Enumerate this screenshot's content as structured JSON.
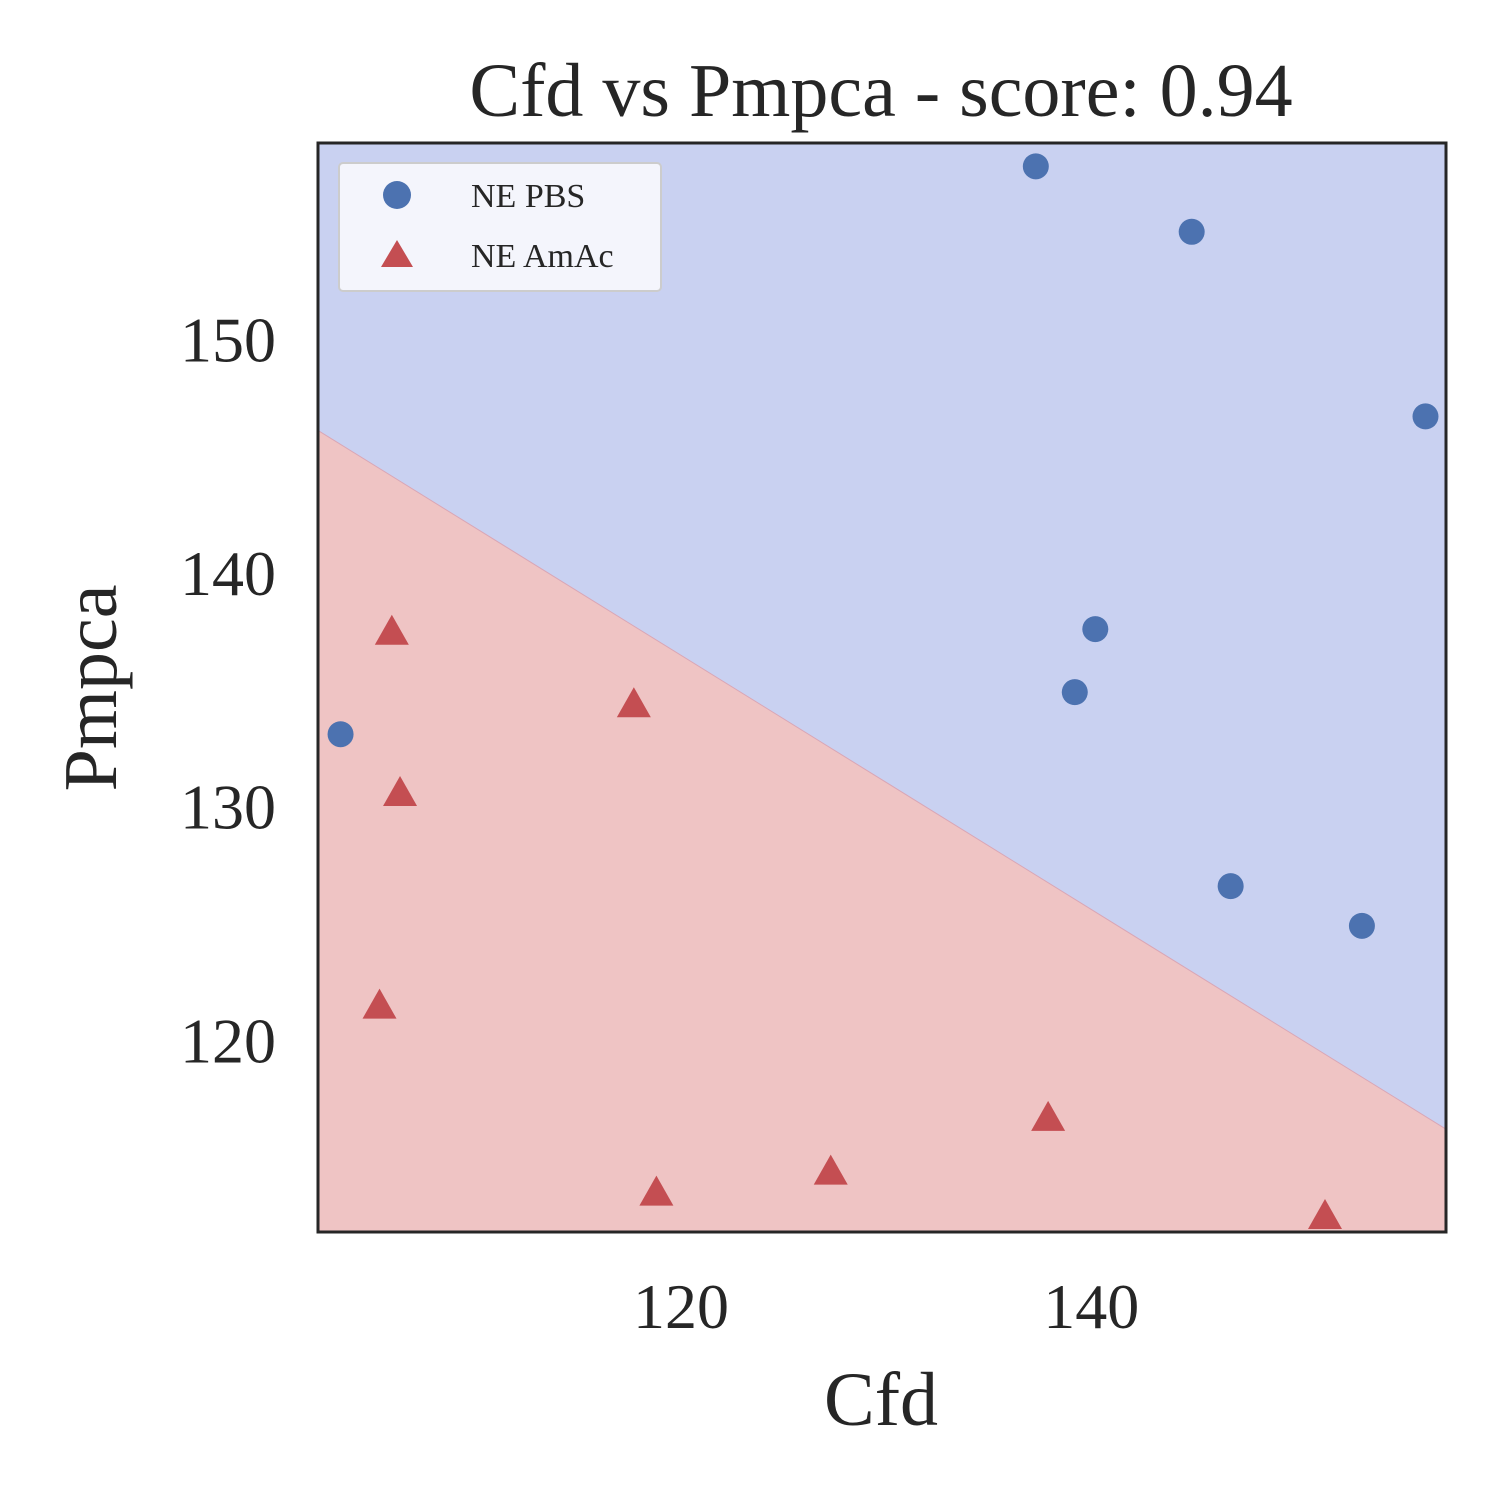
{
  "chart_data": {
    "type": "scatter",
    "title": "Cfd vs Pmpca - score: 0.94",
    "xlabel": "Cfd",
    "ylabel": "Pmpca",
    "xlim": [
      102.3,
      157.3
    ],
    "ylim": [
      111.8,
      158.4
    ],
    "xticks": [
      120,
      140
    ],
    "yticks": [
      120,
      130,
      140,
      150
    ],
    "grid": false,
    "legend_position": "top-left",
    "decision_boundary": {
      "points": [
        [
          102.3,
          146.1
        ],
        [
          157.3,
          116.2
        ]
      ],
      "upper_region": "NE PBS",
      "lower_region": "NE AmAc"
    },
    "colors": {
      "NE PBS": "#4c72b0",
      "NE AmAc": "#c44e52",
      "upper_region_fill": "#c9d1f1",
      "lower_region_fill": "#efc4c4",
      "axes_edge": "#262626"
    },
    "series": [
      {
        "name": "NE PBS",
        "marker": "circle",
        "points": [
          [
            103.4,
            133.1
          ],
          [
            137.3,
            157.4
          ],
          [
            139.2,
            134.9
          ],
          [
            140.2,
            137.6
          ],
          [
            144.9,
            154.6
          ],
          [
            146.8,
            126.6
          ],
          [
            153.2,
            124.9
          ],
          [
            156.3,
            146.7
          ]
        ]
      },
      {
        "name": "NE AmAc",
        "marker": "triangle",
        "points": [
          [
            105.3,
            121.4
          ],
          [
            105.9,
            137.4
          ],
          [
            106.3,
            130.5
          ],
          [
            117.7,
            134.3
          ],
          [
            118.8,
            113.4
          ],
          [
            127.3,
            114.3
          ],
          [
            137.9,
            116.6
          ],
          [
            151.4,
            112.4
          ]
        ]
      }
    ]
  }
}
